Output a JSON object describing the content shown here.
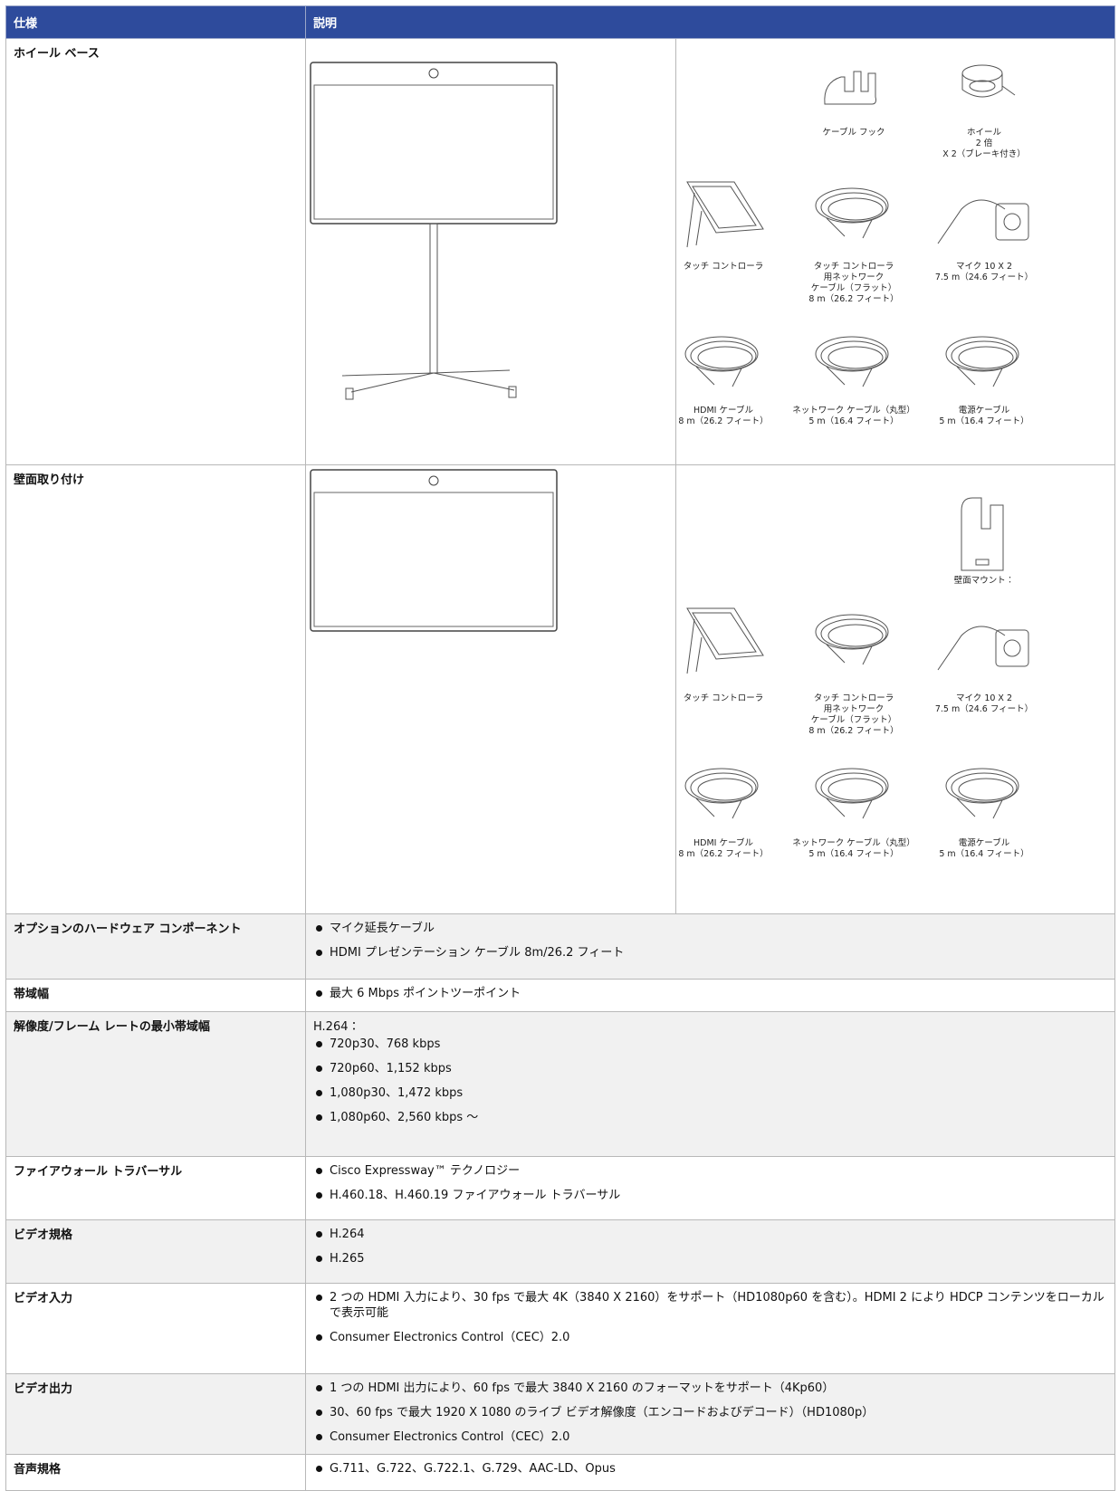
{
  "header": {
    "col1": "仕様",
    "col2": "説明"
  },
  "rows": [
    {
      "spec": "ホイール ベース",
      "accessories": [
        {
          "caption": [
            "ケーブル フック"
          ]
        },
        {
          "caption": [
            "ホイール",
            "2 倍",
            "X 2（ブレーキ付き）"
          ]
        },
        {
          "caption": [
            "タッチ コントローラ"
          ]
        },
        {
          "caption": [
            "タッチ コントローラ",
            "用ネットワーク",
            "ケーブル（フラット）",
            "8 m（26.2 フィート）"
          ]
        },
        {
          "caption": [
            "マイク 10 X 2",
            "7.5 m（24.6 フィート）"
          ]
        },
        {
          "caption": [
            "HDMI ケーブル",
            "8 m（26.2 フィート）"
          ]
        },
        {
          "caption": [
            "ネットワーク ケーブル（丸型）",
            "5 m（16.4 フィート）"
          ]
        },
        {
          "caption": [
            "電源ケーブル",
            "5 m（16.4 フィート）"
          ]
        }
      ]
    },
    {
      "spec": "壁面取り付け",
      "accessories": [
        {
          "caption": [
            "壁面マウント："
          ]
        },
        {
          "caption": [
            "タッチ コントローラ"
          ]
        },
        {
          "caption": [
            "タッチ コントローラ",
            "用ネットワーク",
            "ケーブル（フラット）",
            "8 m（26.2 フィート）"
          ]
        },
        {
          "caption": [
            "マイク 10 X 2",
            "7.5 m（24.6 フィート）"
          ]
        },
        {
          "caption": [
            "HDMI ケーブル",
            "8 m（26.2 フィート）"
          ]
        },
        {
          "caption": [
            "ネットワーク ケーブル（丸型）",
            "5 m（16.4 フィート）"
          ]
        },
        {
          "caption": [
            "電源ケーブル",
            "5 m（16.4 フィート）"
          ]
        }
      ]
    },
    {
      "spec": "オプションのハードウェア コンポーネント",
      "bullets": [
        "マイク延長ケーブル",
        "HDMI プレゼンテーション ケーブル 8m/26.2 フィート"
      ]
    },
    {
      "spec": "帯域幅",
      "bullets": [
        "最大 6 Mbps ポイントツーポイント"
      ]
    },
    {
      "spec": "解像度/フレーム レートの最小帯域幅",
      "intro": "H.264：",
      "bullets": [
        "720p30、768 kbps",
        "720p60、1,152 kbps",
        "1,080p30、1,472 kbps",
        "1,080p60、2,560 kbps ～"
      ]
    },
    {
      "spec": "ファイアウォール トラバーサル",
      "bullets": [
        "Cisco Expressway™ テクノロジー",
        "H.460.18、H.460.19 ファイアウォール トラバーサル"
      ]
    },
    {
      "spec": "ビデオ規格",
      "bullets": [
        "H.264",
        "H.265"
      ]
    },
    {
      "spec": "ビデオ入力",
      "bullets": [
        "2 つの HDMI 入力により、30 fps で最大 4K（3840 X 2160）をサポート（HD1080p60 を含む）。HDMI 2 により HDCP コンテンツをローカルで表示可能",
        "Consumer Electronics Control（CEC）2.0"
      ]
    },
    {
      "spec": "ビデオ出力",
      "bullets": [
        "1 つの HDMI 出力により、60 fps で最大 3840 X 2160 のフォーマットをサポート（4Kp60）",
        "30、60 fps で最大 1920 X 1080 のライブ ビデオ解像度（エンコードおよびデコード）（HD1080p）",
        "Consumer Electronics Control（CEC）2.0"
      ]
    },
    {
      "spec": "音声規格",
      "bullets": [
        "G.711、G.722、G.722.1、G.729、AAC-LD、Opus"
      ]
    }
  ]
}
